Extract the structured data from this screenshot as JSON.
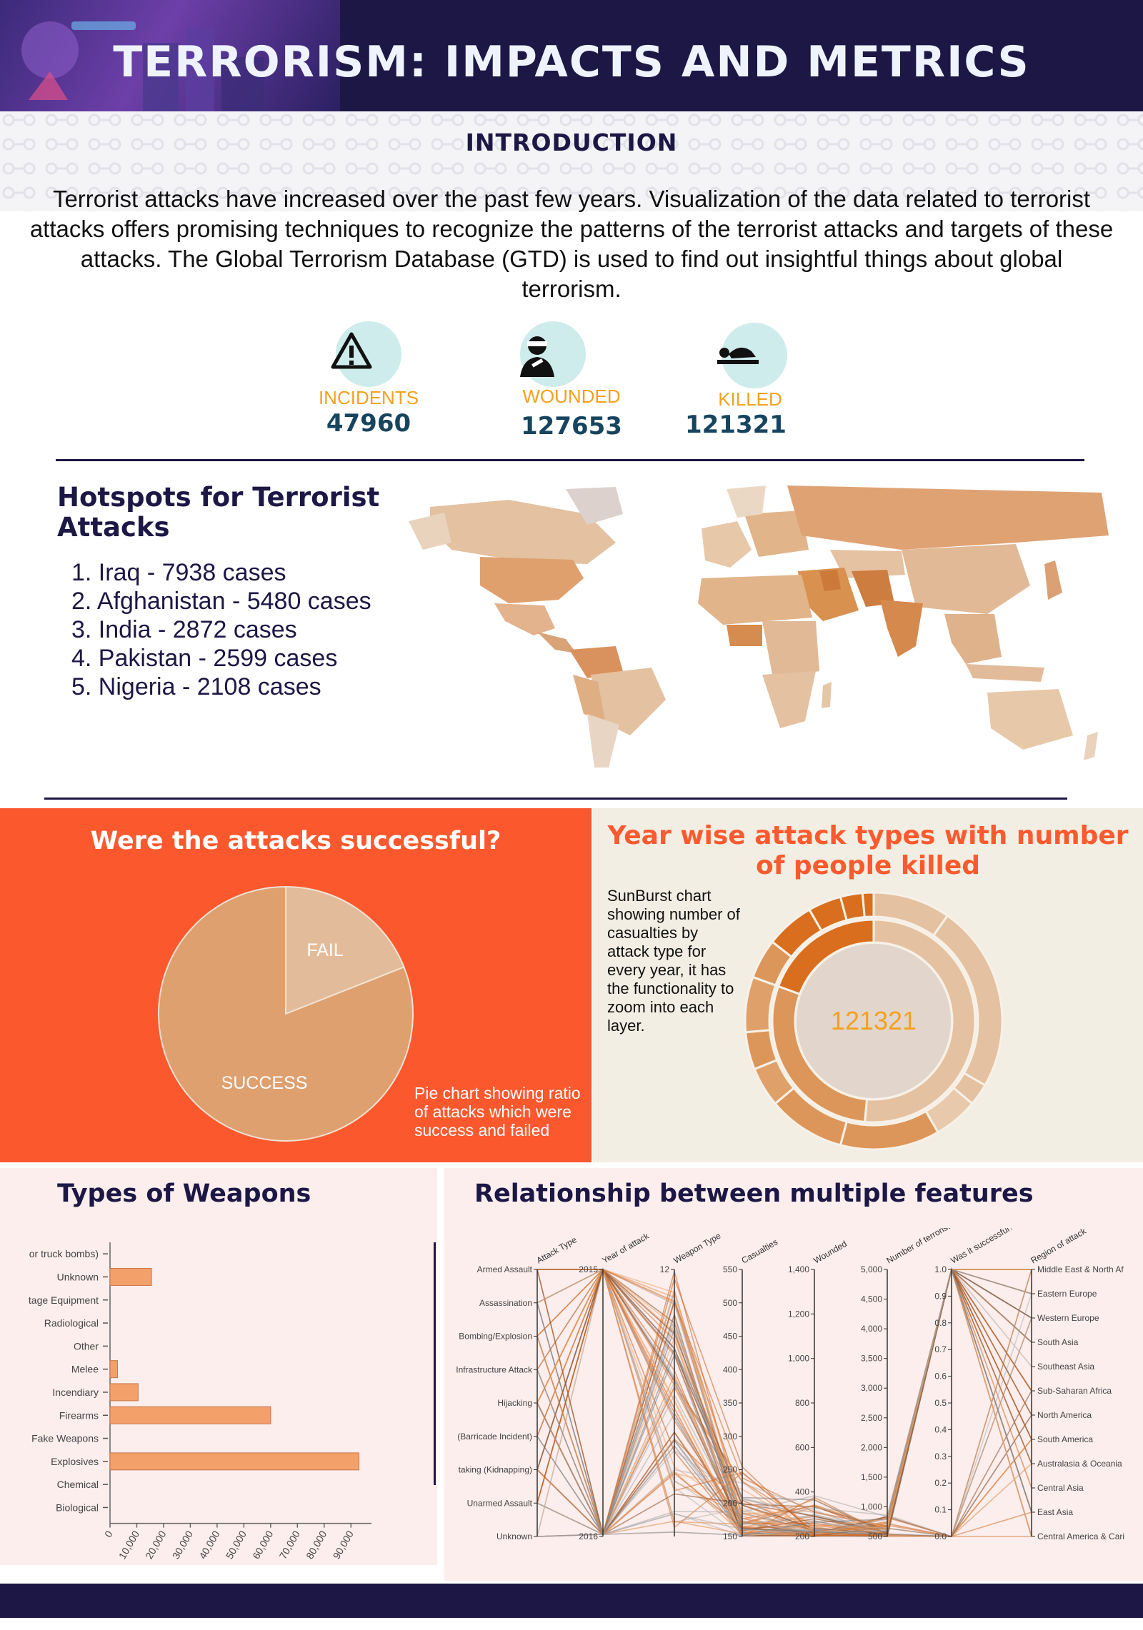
{
  "header": {
    "title": "TERRORISM: IMPACTS AND METRICS"
  },
  "intro": {
    "heading": "INTRODUCTION",
    "text": "Terrorist attacks have increased over the past few years. Visualization of the data related to terrorist attacks offers promising techniques to recognize the patterns of the terrorist attacks and targets of these attacks. The  Global Terrorism Database (GTD) is used to find out insightful things about global terrorism."
  },
  "kpis": [
    {
      "label": "INCIDENTS",
      "value": "47960",
      "icon": "warning-icon"
    },
    {
      "label": "WOUNDED",
      "value": "127653",
      "icon": "wounded-person-icon"
    },
    {
      "label": "KILLED",
      "value": "121321",
      "icon": "lying-body-icon"
    }
  ],
  "hotspots": {
    "title": "Hotspots for Terrorist Attacks",
    "items": [
      "1. Iraq - 7938 cases",
      "2. Afghanistan - 5480 cases",
      "3. India - 2872  cases",
      "4. Pakistan - 2599 cases",
      "5. Nigeria - 2108 cases"
    ]
  },
  "success": {
    "title": "Were the attacks successful?",
    "note": "Pie chart showing ratio of attacks which were success and failed"
  },
  "sunburst": {
    "title": "Year wise attack types with number of people killed",
    "note": "SunBurst chart showing number of casualties by attack type for every year, it has the functionality to zoom into each layer.",
    "center_value": "121321"
  },
  "weapons": {
    "title": "Types of Weapons"
  },
  "parallel": {
    "title": "Relationship between multiple features"
  },
  "colors": {
    "navy": "#1c1745",
    "orange_panel": "#fc582e",
    "bar": "#f4a06a",
    "pie_success": "#dea06f",
    "pie_fail": "#e2bc9a",
    "kpi_label": "#f2a11f"
  },
  "chart_data": [
    {
      "type": "pie",
      "categories": [
        "SUCCESS",
        "FAIL"
      ],
      "values": [
        0.81,
        0.19
      ]
    },
    {
      "type": "bar",
      "orientation": "horizontal",
      "categories": [
        "Biological",
        "Chemical",
        "Explosives",
        "Fake Weapons",
        "Firearms",
        "Incendiary",
        "Melee",
        "Other",
        "Radiological",
        "Sabotage Equipment",
        "Unknown",
        "Vehicle (not to include vehicle-borne explosives, i.e., car or truck bombs)"
      ],
      "category_labels": [
        "Biological",
        "Chemical",
        "Explosives",
        "Fake Weapons",
        "Firearms",
        "Incendiary",
        "Melee",
        "Other",
        "Radiological",
        "tage Equipment",
        "Unknown",
        "or truck bombs)"
      ],
      "values": [
        0,
        0,
        93000,
        0,
        60000,
        10500,
        2800,
        0,
        0,
        0,
        15500,
        0
      ],
      "xticks": [
        "0",
        "10,000",
        "20,000",
        "30,000",
        "40,000",
        "50,000",
        "60,000",
        "70,000",
        "80,000",
        "90,000"
      ],
      "xlim": [
        0,
        95000
      ]
    },
    {
      "type": "parallel-coordinates",
      "axes": [
        {
          "name": "Attack Type",
          "ticks": [
            "Armed Assault",
            "Assassination",
            "Bombing/Explosion",
            "Infrastructure Attack",
            "Hijacking",
            "(Barricade Incident)",
            "taking (Kidnapping)",
            "Unarmed Assault",
            "Unknown"
          ]
        },
        {
          "name": "Year of attack",
          "ticks": [
            "2015",
            "2016"
          ]
        },
        {
          "name": "Weapon Type",
          "ticks": [
            "12"
          ]
        },
        {
          "name": "Casualties",
          "ticks": [
            "550",
            "500",
            "450",
            "400",
            "350",
            "300",
            "250",
            "200",
            "150"
          ]
        },
        {
          "name": "Wounded",
          "ticks": [
            "1,400",
            "1,200",
            "1,000",
            "800",
            "600",
            "400",
            "200"
          ]
        },
        {
          "name": "Number of terrorists",
          "ticks": [
            "5,000",
            "4,500",
            "4,000",
            "3,500",
            "3,000",
            "2,500",
            "2,000",
            "1,500",
            "1,000",
            "500"
          ]
        },
        {
          "name": "Was it successful?",
          "ticks": [
            "1.0",
            "0.9",
            "0.8",
            "0.7",
            "0.6",
            "0.5",
            "0.4",
            "0.3",
            "0.2",
            "0.1",
            "0.0"
          ]
        },
        {
          "name": "Region of attack",
          "ticks": [
            "Middle East & North Af",
            "Eastern Europe",
            "Western Europe",
            "South Asia",
            "Southeast Asia",
            "Sub-Saharan Africa",
            "North America",
            "South America",
            "Australasia & Oceania",
            "Central Asia",
            "East Asia",
            "Central America & Cari"
          ]
        }
      ]
    }
  ]
}
